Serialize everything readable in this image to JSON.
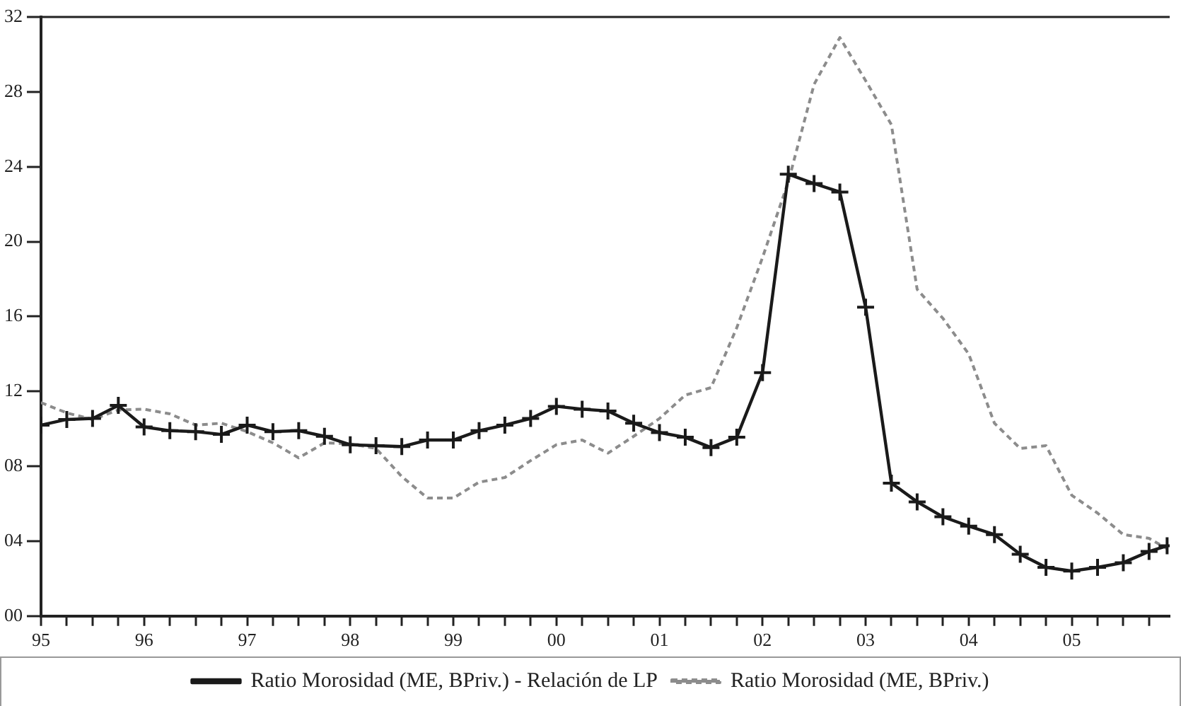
{
  "chart_data": {
    "type": "line",
    "x": [
      1995,
      1995.25,
      1995.5,
      1995.75,
      1996,
      1996.25,
      1996.5,
      1996.75,
      1997,
      1997.25,
      1997.5,
      1997.75,
      1998,
      1998.25,
      1998.5,
      1998.75,
      1999,
      1999.25,
      1999.5,
      1999.75,
      2000,
      2000.25,
      2000.5,
      2000.75,
      2001,
      2001.25,
      2001.5,
      2001.75,
      2002,
      2002.25,
      2002.5,
      2002.75,
      2003,
      2003.25,
      2003.5,
      2003.75,
      2004,
      2004.25,
      2004.5,
      2004.75,
      2005,
      2005.25,
      2005.5,
      2005.75,
      2005.925
    ],
    "series": [
      {
        "name": "Ratio Morosidad (ME, BPriv.)",
        "color": "#8c8c8c",
        "line_style": "dashed",
        "marker": "none",
        "values": [
          11.4,
          10.85,
          10.5,
          11.0,
          11.05,
          10.8,
          10.2,
          10.3,
          9.85,
          9.25,
          8.45,
          9.25,
          9.2,
          8.95,
          7.45,
          6.3,
          6.3,
          7.15,
          7.4,
          8.3,
          9.15,
          9.4,
          8.7,
          9.6,
          10.55,
          11.8,
          12.2,
          15.4,
          19.15,
          23.2,
          28.4,
          30.9,
          28.6,
          26.25,
          17.45,
          15.9,
          14.0,
          10.3,
          8.95,
          9.1,
          6.45,
          5.5,
          4.35,
          4.15,
          3.6
        ]
      },
      {
        "name": "Ratio Morosidad (ME, BPriv.) - Relación de LP",
        "color": "#1a1a1a",
        "line_style": "solid",
        "marker": "cross",
        "values": [
          10.2,
          10.5,
          10.55,
          11.25,
          10.1,
          9.9,
          9.85,
          9.7,
          10.2,
          9.85,
          9.9,
          9.6,
          9.15,
          9.1,
          9.05,
          9.4,
          9.4,
          9.9,
          10.2,
          10.55,
          11.2,
          11.05,
          10.95,
          10.3,
          9.8,
          9.55,
          9.0,
          9.55,
          13.0,
          23.6,
          23.1,
          22.65,
          16.5,
          7.1,
          6.1,
          5.3,
          4.8,
          4.35,
          3.3,
          2.6,
          2.4,
          2.6,
          2.85,
          3.45,
          3.75
        ]
      }
    ],
    "xlim": [
      1995,
      2005.95
    ],
    "xticks": [
      {
        "value": 1995,
        "label": "95"
      },
      {
        "value": 1995.25,
        "label": null
      },
      {
        "value": 1995.5,
        "label": null
      },
      {
        "value": 1995.75,
        "label": null
      },
      {
        "value": 1996,
        "label": "96"
      },
      {
        "value": 1996.25,
        "label": null
      },
      {
        "value": 1996.5,
        "label": null
      },
      {
        "value": 1996.75,
        "label": null
      },
      {
        "value": 1997,
        "label": "97"
      },
      {
        "value": 1997.25,
        "label": null
      },
      {
        "value": 1997.5,
        "label": null
      },
      {
        "value": 1997.75,
        "label": null
      },
      {
        "value": 1998,
        "label": "98"
      },
      {
        "value": 1998.25,
        "label": null
      },
      {
        "value": 1998.5,
        "label": null
      },
      {
        "value": 1998.75,
        "label": null
      },
      {
        "value": 1999,
        "label": "99"
      },
      {
        "value": 1999.25,
        "label": null
      },
      {
        "value": 1999.5,
        "label": null
      },
      {
        "value": 1999.75,
        "label": null
      },
      {
        "value": 2000,
        "label": "00"
      },
      {
        "value": 2000.25,
        "label": null
      },
      {
        "value": 2000.5,
        "label": null
      },
      {
        "value": 2000.75,
        "label": null
      },
      {
        "value": 2001,
        "label": "01"
      },
      {
        "value": 2001.25,
        "label": null
      },
      {
        "value": 2001.5,
        "label": null
      },
      {
        "value": 2001.75,
        "label": null
      },
      {
        "value": 2002,
        "label": "02"
      },
      {
        "value": 2002.25,
        "label": null
      },
      {
        "value": 2002.5,
        "label": null
      },
      {
        "value": 2002.75,
        "label": null
      },
      {
        "value": 2003,
        "label": "03"
      },
      {
        "value": 2003.25,
        "label": null
      },
      {
        "value": 2003.5,
        "label": null
      },
      {
        "value": 2003.75,
        "label": null
      },
      {
        "value": 2004,
        "label": "04"
      },
      {
        "value": 2004.25,
        "label": null
      },
      {
        "value": 2004.5,
        "label": null
      },
      {
        "value": 2004.75,
        "label": null
      },
      {
        "value": 2005,
        "label": "05"
      },
      {
        "value": 2005.25,
        "label": null
      },
      {
        "value": 2005.5,
        "label": null
      },
      {
        "value": 2005.75,
        "label": null
      }
    ],
    "ylim": [
      0,
      32
    ],
    "yticks": [
      {
        "value": 0,
        "label": "00"
      },
      {
        "value": 4,
        "label": "04"
      },
      {
        "value": 8,
        "label": "08"
      },
      12,
      16,
      20,
      24,
      28,
      32
    ],
    "grid": false,
    "legend": "bottom"
  }
}
